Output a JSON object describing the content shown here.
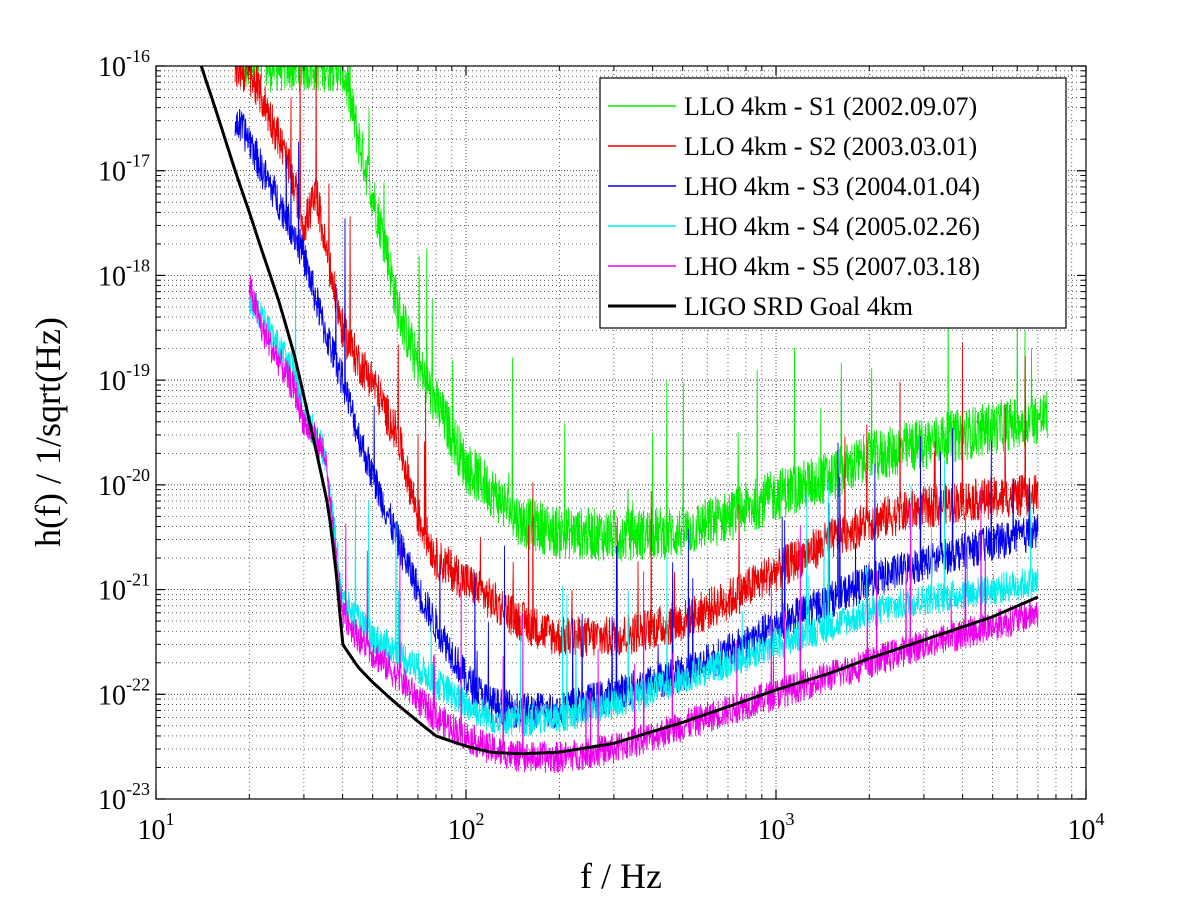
{
  "chart_data": {
    "type": "line",
    "title": "",
    "xlabel": "f / Hz",
    "ylabel": "h(f) / 1/sqrt(Hz)",
    "xscale": "log",
    "yscale": "log",
    "xlim": [
      10,
      10000
    ],
    "ylim": [
      1e-23,
      1e-16
    ],
    "grid": true,
    "legend_position": "top-right",
    "x_ticks": [
      {
        "base": "10",
        "exp": "1",
        "value": 10
      },
      {
        "base": "10",
        "exp": "2",
        "value": 100
      },
      {
        "base": "10",
        "exp": "3",
        "value": 1000
      },
      {
        "base": "10",
        "exp": "4",
        "value": 10000
      }
    ],
    "y_ticks": [
      {
        "base": "10",
        "exp": "-23",
        "value": 1e-23
      },
      {
        "base": "10",
        "exp": "-22",
        "value": 1e-22
      },
      {
        "base": "10",
        "exp": "-21",
        "value": 1e-21
      },
      {
        "base": "10",
        "exp": "-20",
        "value": 1e-20
      },
      {
        "base": "10",
        "exp": "-19",
        "value": 1e-19
      },
      {
        "base": "10",
        "exp": "-18",
        "value": 1e-18
      },
      {
        "base": "10",
        "exp": "-17",
        "value": 1e-17
      },
      {
        "base": "10",
        "exp": "-16",
        "value": 1e-16
      }
    ],
    "series": [
      {
        "name": "LLO 4km - S1 (2002.09.07)",
        "color": "#00ee00",
        "noise": 0.5,
        "x": [
          19,
          22,
          26,
          30,
          35,
          40,
          45,
          50,
          55,
          60,
          70,
          80,
          90,
          100,
          120,
          150,
          200,
          300,
          500,
          700,
          1000,
          1500,
          2000,
          3000,
          5000,
          7500
        ],
        "y": [
          1e-16,
          1e-16,
          1e-16,
          1e-16,
          1e-16,
          1e-16,
          2e-17,
          6e-18,
          2e-18,
          5e-19,
          1.4e-19,
          6e-20,
          3e-20,
          1.5e-20,
          9e-21,
          4.5e-21,
          3.5e-21,
          3.3e-21,
          3.5e-21,
          5e-21,
          8e-21,
          1.2e-20,
          1.8e-20,
          2.5e-20,
          3.5e-20,
          4.5e-20
        ]
      },
      {
        "name": "LLO 4km - S2 (2003.03.01)",
        "color": "#ee0000",
        "noise": 0.4,
        "x": [
          18,
          20,
          22,
          25,
          28,
          30,
          33,
          35,
          40,
          45,
          50,
          55,
          60,
          70,
          80,
          100,
          120,
          150,
          200,
          300,
          500,
          700,
          1000,
          1500,
          2000,
          3000,
          4000,
          5000,
          7000
        ],
        "y": [
          1e-16,
          8e-17,
          5e-17,
          2e-17,
          7e-18,
          3e-18,
          6e-18,
          2e-18,
          3e-19,
          1.5e-19,
          1e-19,
          5e-20,
          3e-20,
          5e-21,
          2e-21,
          1.2e-21,
          8e-22,
          5e-22,
          3.5e-22,
          3.5e-22,
          5e-22,
          8e-22,
          1.5e-21,
          3e-21,
          4.5e-21,
          6e-21,
          7e-21,
          7.5e-21,
          8e-21
        ]
      },
      {
        "name": "LHO 4km - S3 (2004.01.04)",
        "color": "#0000ee",
        "noise": 0.35,
        "x": [
          18,
          20,
          22,
          25,
          28,
          30,
          35,
          40,
          45,
          50,
          55,
          60,
          70,
          80,
          90,
          100,
          120,
          150,
          200,
          300,
          500,
          700,
          1000,
          1500,
          2000,
          3000,
          5000,
          7000
        ],
        "y": [
          3e-17,
          2e-17,
          1e-17,
          5e-18,
          2.5e-18,
          1.5e-18,
          3e-19,
          1e-19,
          3e-20,
          1.2e-20,
          6e-21,
          3e-21,
          1e-21,
          4.5e-22,
          2.5e-22,
          1.4e-22,
          8e-23,
          7e-23,
          7e-23,
          1e-22,
          1.6e-22,
          2.5e-22,
          4.5e-22,
          8e-22,
          1.2e-21,
          1.8e-21,
          2.8e-21,
          3.5e-21
        ]
      },
      {
        "name": "LHO 4km - S4 (2005.02.26)",
        "color": "#00eeee",
        "noise": 0.3,
        "x": [
          20,
          22,
          25,
          28,
          30,
          35,
          38,
          40,
          45,
          50,
          55,
          60,
          70,
          80,
          100,
          120,
          150,
          200,
          300,
          500,
          700,
          1000,
          1500,
          2000,
          3000,
          5000,
          7000
        ],
        "y": [
          6e-19,
          4e-19,
          2e-19,
          1.2e-19,
          5e-20,
          2e-20,
          3e-21,
          8e-22,
          5e-22,
          3.5e-22,
          3e-22,
          2.5e-22,
          1.8e-22,
          1.3e-22,
          8e-23,
          6e-23,
          5.5e-23,
          6e-23,
          8e-23,
          1.4e-22,
          2e-22,
          3e-22,
          4.5e-22,
          6e-22,
          8e-22,
          1e-21,
          1.2e-21
        ]
      },
      {
        "name": "LHO 4km - S5 (2007.03.18)",
        "color": "#ee00ee",
        "noise": 0.3,
        "x": [
          20,
          22,
          25,
          28,
          30,
          35,
          38,
          40,
          45,
          50,
          60,
          70,
          80,
          100,
          120,
          150,
          200,
          300,
          500,
          700,
          1000,
          1500,
          2000,
          3000,
          5000,
          7000
        ],
        "y": [
          8e-19,
          3e-19,
          1.5e-19,
          8e-20,
          4e-20,
          2e-20,
          2e-21,
          6e-22,
          3.5e-22,
          2.5e-22,
          1.5e-22,
          9e-23,
          6e-23,
          4e-23,
          3e-23,
          2.5e-23,
          2.5e-23,
          3e-23,
          5e-23,
          7e-23,
          1e-22,
          1.5e-22,
          2e-22,
          3e-22,
          4.5e-22,
          6e-22
        ]
      },
      {
        "name": "LIGO SRD Goal 4km",
        "color": "#000000",
        "noise": 0,
        "x": [
          14,
          16,
          18,
          20,
          22,
          25,
          28,
          30,
          33,
          36,
          38,
          40,
          45,
          50,
          60,
          70,
          80,
          100,
          120,
          150,
          200,
          300,
          500,
          700,
          1000,
          1500,
          2000,
          3000,
          5000,
          7000
        ],
        "y": [
          1e-16,
          3e-17,
          1e-17,
          4e-18,
          1.7e-18,
          5.5e-19,
          1.7e-19,
          7e-20,
          2e-20,
          6e-21,
          1.6e-21,
          3e-22,
          1.8e-22,
          1.3e-22,
          8e-23,
          5.5e-23,
          4e-23,
          3.2e-23,
          2.8e-23,
          2.7e-23,
          2.8e-23,
          3.4e-23,
          5.4e-23,
          7.6e-23,
          1.1e-22,
          1.6e-22,
          2.2e-22,
          3.3e-22,
          5.5e-22,
          8.5e-22
        ]
      }
    ]
  }
}
